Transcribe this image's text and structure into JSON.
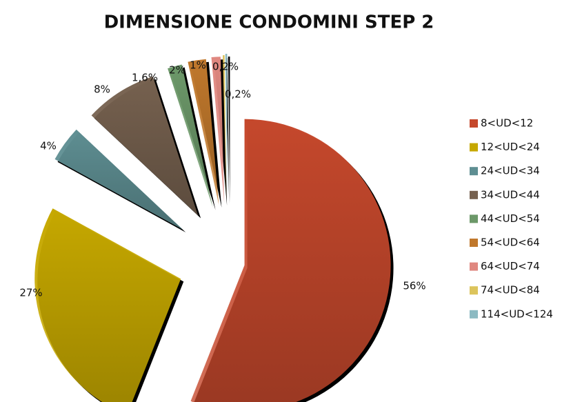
{
  "chart_data": {
    "type": "pie",
    "title": "DIMENSIONE CONDOMINI STEP 2",
    "categories": [
      "8<UD<12",
      "12<UD<24",
      "24<UD<34",
      "34<UD<44",
      "44<UD<54",
      "54<UD<64",
      "64<UD<74",
      "74<UD<84",
      "114<UD<124"
    ],
    "values": [
      56,
      27,
      4,
      8,
      1.6,
      2,
      1,
      0.2,
      0.2
    ],
    "value_labels": [
      "56%",
      "27%",
      "4%",
      "8%",
      "1,6%",
      "2%",
      "1%",
      "0,2%",
      "0,2%"
    ],
    "colors": [
      "#c5482c",
      "#c6a800",
      "#5e8e92",
      "#76614f",
      "#6c9869",
      "#c0782c",
      "#e08880",
      "#dcc45c",
      "#8cbac2"
    ],
    "legend": "right"
  }
}
